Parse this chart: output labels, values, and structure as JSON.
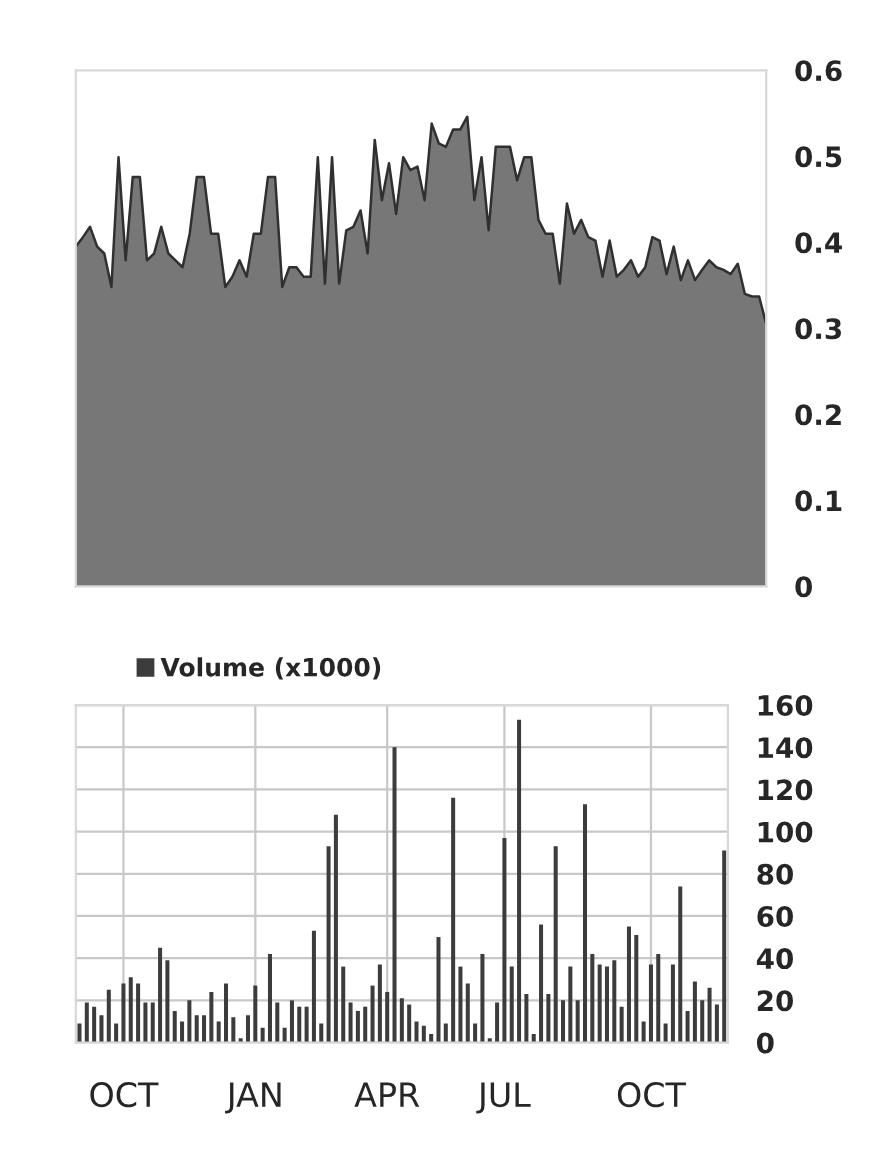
{
  "chart_data": [
    {
      "type": "area",
      "ylim": [
        0,
        0.6
      ],
      "yticks": [
        0,
        0.1,
        0.2,
        0.3,
        0.4,
        0.5,
        0.6
      ],
      "tick_labels": "y",
      "grid": false,
      "categories": [
        null,
        null,
        null,
        null,
        null,
        null,
        null,
        null,
        null,
        null,
        null,
        null,
        null,
        null,
        null,
        null,
        null,
        null,
        null,
        null,
        null,
        null,
        null,
        null,
        null,
        null,
        null,
        null,
        null,
        null,
        null,
        null,
        null,
        null,
        null,
        null,
        null,
        null,
        null,
        null,
        null,
        null,
        null,
        null,
        null,
        null,
        null,
        null,
        null,
        null,
        null,
        null,
        null,
        null,
        null,
        null,
        null,
        null,
        null,
        null,
        null,
        null,
        null,
        null,
        null,
        null,
        null,
        null,
        null,
        null,
        null,
        null,
        null,
        null,
        null,
        null,
        null,
        null,
        null,
        null,
        null,
        null,
        null,
        null,
        null,
        null,
        null,
        null,
        null,
        null,
        null,
        null,
        null,
        null,
        null,
        null,
        null,
        null
      ],
      "series": [
        {
          "color": "#777777",
          "values": [
            0.395,
            0.406,
            0.418,
            0.395,
            0.387,
            0.348,
            0.499,
            0.379,
            0.476,
            0.476,
            0.379,
            0.387,
            0.418,
            0.387,
            0.379,
            0.371,
            0.41,
            0.476,
            0.476,
            0.41,
            0.41,
            0.348,
            0.36,
            0.379,
            0.36,
            0.41,
            0.41,
            0.476,
            0.476,
            0.348,
            0.371,
            0.371,
            0.36,
            0.36,
            0.499,
            0.352,
            0.499,
            0.352,
            0.414,
            0.418,
            0.437,
            0.387,
            0.519,
            0.449,
            0.492,
            0.433,
            0.499,
            0.484,
            0.488,
            0.449,
            0.538,
            0.515,
            0.511,
            0.531,
            0.531,
            0.546,
            0.449,
            0.499,
            0.414,
            0.511,
            0.511,
            0.511,
            0.472,
            0.499,
            0.499,
            0.426,
            0.41,
            0.41,
            0.352,
            0.445,
            0.41,
            0.426,
            0.406,
            0.402,
            0.36,
            0.402,
            0.36,
            0.368,
            0.379,
            0.36,
            0.371,
            0.406,
            0.402,
            0.363,
            0.395,
            0.356,
            0.379,
            0.356,
            0.368,
            0.379,
            0.371,
            0.368,
            0.363,
            0.375,
            0.34,
            0.337,
            0.337,
            0.305
          ]
        }
      ]
    },
    {
      "type": "bar",
      "ylim": [
        0,
        160
      ],
      "yticks": [
        0,
        20,
        40,
        60,
        80,
        100,
        120,
        140,
        160
      ],
      "grid": true,
      "legend": "top",
      "categories": [
        null,
        null,
        null,
        null,
        null,
        null,
        "OCT",
        null,
        null,
        null,
        null,
        null,
        null,
        null,
        null,
        null,
        null,
        null,
        null,
        null,
        null,
        null,
        null,
        null,
        "JAN",
        null,
        null,
        null,
        null,
        null,
        null,
        null,
        null,
        null,
        null,
        null,
        null,
        null,
        null,
        null,
        null,
        null,
        "APR",
        null,
        null,
        null,
        null,
        null,
        null,
        null,
        null,
        null,
        null,
        null,
        null,
        null,
        null,
        null,
        "JUL",
        null,
        null,
        null,
        null,
        null,
        null,
        null,
        null,
        null,
        null,
        null,
        null,
        null,
        null,
        null,
        null,
        null,
        null,
        null,
        "OCT",
        null,
        null,
        null,
        null,
        null,
        null,
        null,
        null,
        null,
        null
      ],
      "series": [
        {
          "name": "Volume (x1000)",
          "color": "#3c3c3c",
          "values": [
            9,
            19,
            17,
            13,
            25,
            9,
            28,
            31,
            28,
            19,
            19,
            45,
            39,
            15,
            10,
            20,
            13,
            13,
            24,
            10,
            28,
            12,
            2,
            13,
            27,
            7,
            42,
            19,
            7,
            20,
            17,
            17,
            53,
            9,
            93,
            108,
            36,
            19,
            15,
            17,
            27,
            37,
            24,
            140,
            21,
            18,
            10,
            8,
            4,
            50,
            9,
            116,
            36,
            28,
            9,
            42,
            2,
            19,
            97,
            36,
            153,
            23,
            4,
            56,
            23,
            93,
            20,
            36,
            20,
            113,
            42,
            37,
            36,
            39,
            17,
            55,
            51,
            10,
            37,
            42,
            9,
            37,
            74,
            15,
            29,
            20,
            26,
            18,
            91
          ]
        }
      ]
    }
  ]
}
